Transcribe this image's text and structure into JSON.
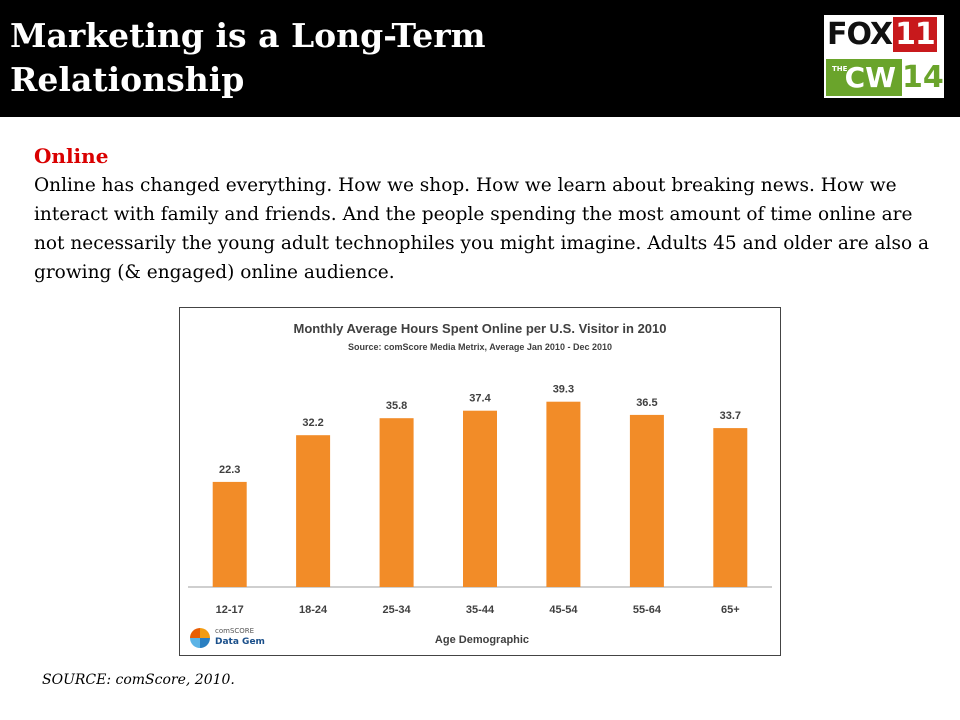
{
  "slide": {
    "title": "Marketing is a Long-Term Relationship",
    "section_heading": "Online",
    "body": "Online has changed everything. How we shop. How we learn about breaking news. How we interact with family and friends. And the people spending the most amount of time online are not necessarily the young adult technophiles you might imagine. Adults 45 and older are also a growing (& engaged) online audience.",
    "source": "SOURCE: comScore, 2010."
  },
  "logo": {
    "fox_text": "FOX",
    "fox_number": "11",
    "cw_prefix": "THE",
    "cw_text": "CW",
    "cw_number": "14"
  },
  "comscore": {
    "line1": "comSCORE",
    "line2": "Data Gem"
  },
  "chart_data": {
    "type": "bar",
    "title": "Monthly Average Hours Spent Online per U.S. Visitor in 2010",
    "subtitle": "Source: comScore Media Metrix, Average Jan 2010 - Dec 2010",
    "xlabel": "Age Demographic",
    "ylabel": "",
    "categories": [
      "12-17",
      "18-24",
      "25-34",
      "35-44",
      "45-54",
      "55-64",
      "65+"
    ],
    "values": [
      22.3,
      32.2,
      35.8,
      37.4,
      39.3,
      36.5,
      33.7
    ],
    "data_labels": [
      "22.3",
      "32.2",
      "35.8",
      "37.4",
      "39.3",
      "36.5",
      "33.7"
    ],
    "ylim": [
      0,
      40.3
    ],
    "grid": false,
    "bar_color": "#f28c28"
  }
}
